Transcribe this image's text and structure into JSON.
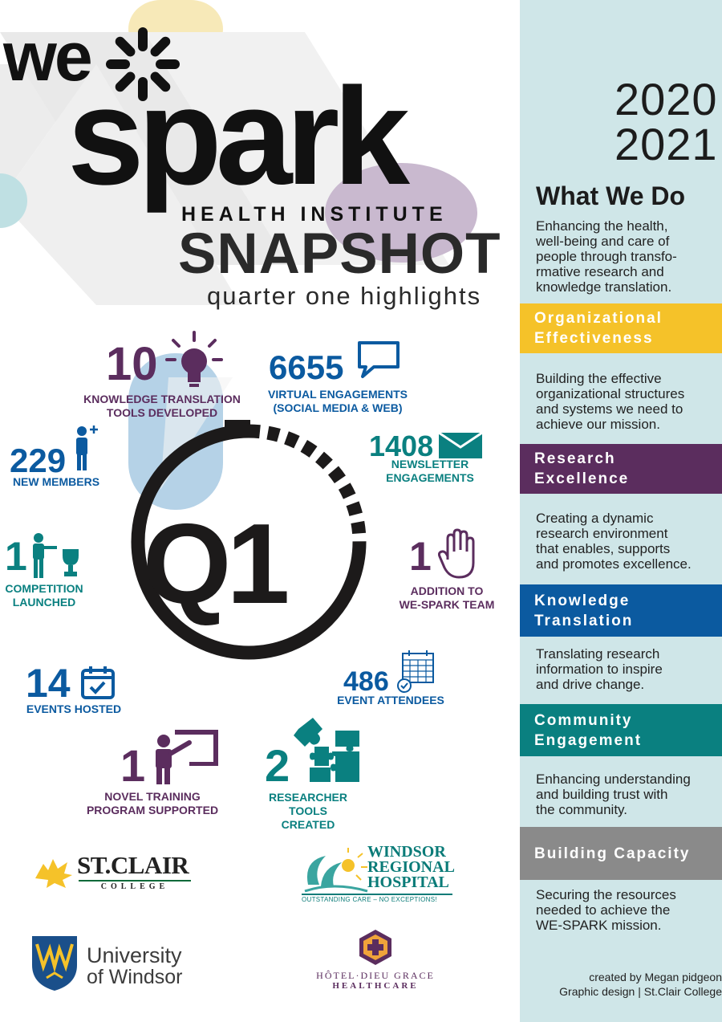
{
  "header": {
    "logo_we": "we",
    "logo_spark": "spark",
    "subtitle": "HEALTH INSTITUTE",
    "title": "SNAPSHOT",
    "tagline": "quarter one highlights"
  },
  "center_label": "Q1",
  "stats": {
    "kt_tools": {
      "value": "10",
      "label": "KNOWLEDGE TRANSLATION\nTOOLS DEVELOPED",
      "icon": "lightbulb-icon"
    },
    "virtual": {
      "value": "6655",
      "label": "VIRTUAL ENGAGEMENTS\n(SOCIAL MEDIA & WEB)",
      "icon": "speech-bubble-icon"
    },
    "members": {
      "value": "229",
      "label": "NEW MEMBERS",
      "icon": "person-plus-icon"
    },
    "newsletter": {
      "value": "1408",
      "label": "NEWSLETTER ENGAGEMENTS",
      "icon": "envelope-icon"
    },
    "competition": {
      "value": "1",
      "label": "COMPETITION\nLAUNCHED",
      "icon": "trophy-icon"
    },
    "addition": {
      "value": "1",
      "label": "ADDITION TO\nWE-SPARK TEAM",
      "icon": "raised-hand-icon"
    },
    "events": {
      "value": "14",
      "label": "EVENTS HOSTED",
      "icon": "calendar-icon"
    },
    "attendees": {
      "value": "486",
      "label": "EVENT ATTENDEES",
      "icon": "calendar-check-icon"
    },
    "training": {
      "value": "1",
      "label": "NOVEL TRAINING\nPROGRAM SUPPORTED",
      "icon": "presenter-icon"
    },
    "researcher": {
      "value": "2",
      "label": "RESEARCHER TOOLS\nCREATED",
      "icon": "puzzle-icon"
    }
  },
  "partners": {
    "stclair": {
      "name": "ST.CLAIR",
      "sub": "COLLEGE"
    },
    "windsor_regional": {
      "line1": "WINDSOR",
      "line2": "REGIONAL",
      "line3": "HOSPITAL",
      "tagline": "OUTSTANDING CARE – NO EXCEPTIONS!"
    },
    "uwindsor": {
      "line1": "University",
      "line2": "of Windsor"
    },
    "hoteldieu": {
      "line1": "HÔTEL·DIEU GRACE",
      "line2": "HEALTHCARE"
    }
  },
  "sidebar": {
    "year1": "2020",
    "year2": "2021",
    "heading": "What We Do",
    "intro": "Enhancing the health,\nwell-being and care of\npeople through transfo-\nrmative research and\nknowledge translation.",
    "sections": [
      {
        "title": "Organizational\nEffectiveness",
        "text": "Building the effective\norganizational structures\nand systems we need to\nachieve our mission.",
        "color": "#f5c229"
      },
      {
        "title": "Research\nExcellence",
        "text": "Creating a dynamic\nresearch environment\nthat enables, supports\nand promotes excellence.",
        "color": "#5b2d5e"
      },
      {
        "title": "Knowledge\nTranslation",
        "text": "Translating research\ninformation to inspire\nand drive change.",
        "color": "#0b5aa0"
      },
      {
        "title": "Community\nEngagement",
        "text": "Enhancing understanding\nand building trust with\nthe community.",
        "color": "#0a8080"
      },
      {
        "title": "Building Capacity",
        "text": "Securing the resources\nneeded to achieve the\nWE-SPARK mission.",
        "color": "#8a8a8a"
      }
    ],
    "credit": "created by Megan pidgeon\nGraphic design  |  St.Clair College"
  },
  "colors": {
    "purple": "#5b2d5e",
    "blue": "#0b5aa0",
    "teal": "#0a8080",
    "yellow": "#f5c229",
    "sidebar_bg": "#cfe6e8"
  }
}
